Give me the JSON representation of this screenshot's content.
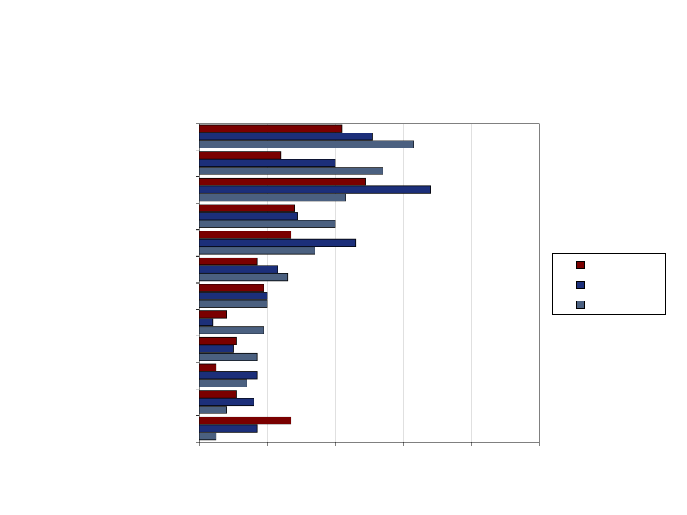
{
  "chart_data": {
    "type": "bar",
    "orientation": "horizontal",
    "categories": [
      "",
      "",
      "",
      "",
      "",
      "",
      "",
      "",
      "",
      "",
      "",
      ""
    ],
    "series": [
      {
        "values": [
          2.1,
          1.2,
          2.45,
          1.4,
          1.35,
          0.85,
          0.95,
          0.4,
          0.55,
          0.25,
          0.55,
          1.35
        ]
      },
      {
        "values": [
          2.55,
          2.0,
          3.4,
          1.45,
          2.3,
          1.15,
          1.0,
          0.2,
          0.5,
          0.85,
          0.8,
          0.85
        ]
      },
      {
        "values": [
          3.15,
          2.7,
          2.15,
          2.0,
          1.7,
          1.3,
          1.0,
          0.95,
          0.85,
          0.7,
          0.4,
          0.25
        ]
      }
    ],
    "colors": [
      "#7a0000",
      "#1c2f7a",
      "#4b6080"
    ],
    "xlim": [
      0,
      5
    ],
    "grid": "vertical",
    "legend_position": "right"
  }
}
